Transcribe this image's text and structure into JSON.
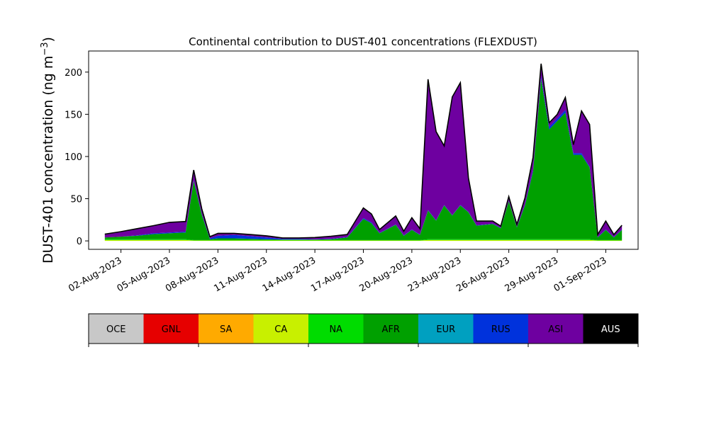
{
  "chart_data": {
    "type": "area",
    "stacked": true,
    "title": "Continental contribution to DUST-401 concentrations (FLEXDUST)",
    "ylabel_main": "DUST-401 concentration (ng m",
    "ylabel_sup": "−3",
    "ylabel_end": ")",
    "xlabel": "",
    "x_range": [
      "31-Jul-2023",
      "03-Sep-2023"
    ],
    "ylim": [
      -10,
      225
    ],
    "yticks": [
      0,
      50,
      100,
      150,
      200
    ],
    "xticks": [
      "02-Aug-2023",
      "05-Aug-2023",
      "08-Aug-2023",
      "11-Aug-2023",
      "14-Aug-2023",
      "17-Aug-2023",
      "20-Aug-2023",
      "23-Aug-2023",
      "26-Aug-2023",
      "29-Aug-2023",
      "01-Sep-2023"
    ],
    "grid": false,
    "x_dates": [
      "01-Aug-2023",
      "02-Aug-2023",
      "03-Aug-2023",
      "04-Aug-2023",
      "05-Aug-2023",
      "06-Aug-2023",
      "06-Aug-2023 12:00",
      "07-Aug-2023",
      "07-Aug-2023 12:00",
      "08-Aug-2023",
      "09-Aug-2023",
      "10-Aug-2023",
      "11-Aug-2023",
      "12-Aug-2023",
      "13-Aug-2023",
      "14-Aug-2023",
      "15-Aug-2023",
      "16-Aug-2023",
      "17-Aug-2023",
      "17-Aug-2023 12:00",
      "18-Aug-2023",
      "19-Aug-2023",
      "19-Aug-2023 12:00",
      "20-Aug-2023",
      "20-Aug-2023 12:00",
      "21-Aug-2023",
      "21-Aug-2023 12:00",
      "22-Aug-2023",
      "22-Aug-2023 12:00",
      "23-Aug-2023",
      "23-Aug-2023 12:00",
      "24-Aug-2023",
      "25-Aug-2023",
      "25-Aug-2023 12:00",
      "26-Aug-2023",
      "26-Aug-2023 12:00",
      "27-Aug-2023",
      "27-Aug-2023 12:00",
      "28-Aug-2023",
      "28-Aug-2023 12:00",
      "29-Aug-2023",
      "29-Aug-2023 12:00",
      "30-Aug-2023",
      "30-Aug-2023 12:00",
      "31-Aug-2023",
      "31-Aug-2023 12:00",
      "01-Sep-2023",
      "01-Sep-2023 12:00",
      "02-Sep-2023"
    ],
    "series": [
      {
        "name": "OCE",
        "color": "#c8c8c8",
        "values": [
          0,
          0,
          0,
          0,
          0,
          0,
          0,
          0,
          0,
          0,
          0,
          0,
          0,
          0,
          0,
          0,
          0,
          0,
          0,
          0,
          0,
          0,
          0,
          0,
          0,
          0,
          0,
          0,
          0,
          0,
          0,
          0,
          0,
          0,
          0,
          0,
          0,
          0,
          0,
          0,
          0,
          0,
          0,
          0,
          0,
          0,
          0,
          0,
          0
        ]
      },
      {
        "name": "GNL",
        "color": "#e60000",
        "values": [
          0,
          0,
          0,
          0,
          0,
          0,
          0,
          0,
          0,
          0,
          0,
          0,
          0,
          0,
          0,
          0,
          0,
          0,
          0,
          0,
          0,
          0,
          0,
          0,
          0,
          0,
          0,
          0,
          0,
          0,
          0,
          0,
          0,
          0,
          0,
          0,
          0,
          0,
          0,
          0,
          0,
          0,
          0,
          0,
          0,
          0,
          0,
          0,
          0
        ]
      },
      {
        "name": "SA",
        "color": "#ffaa00",
        "values": [
          0,
          0,
          0,
          0,
          0,
          0,
          0,
          0,
          0,
          0,
          0,
          0,
          0,
          0,
          0,
          0,
          0,
          0,
          0,
          0,
          0,
          0,
          0,
          0,
          0,
          0,
          0,
          0,
          0,
          0,
          0,
          0,
          0,
          0,
          0,
          0,
          0,
          0,
          0,
          0,
          0,
          0,
          0,
          0,
          0,
          0,
          0,
          0,
          0
        ]
      },
      {
        "name": "CA",
        "color": "#c8f000",
        "values": [
          1,
          1,
          1,
          1,
          1,
          1,
          0.5,
          0.5,
          0.5,
          0.5,
          0.5,
          0.5,
          0.5,
          0.5,
          0.5,
          0.5,
          0.5,
          0.5,
          0.5,
          0.5,
          0.5,
          0.5,
          0.5,
          0.5,
          0.5,
          1,
          1,
          1,
          1,
          1,
          1,
          1,
          1,
          1,
          1,
          1,
          1,
          1,
          1,
          1,
          1,
          1,
          1,
          1,
          1,
          0.5,
          0.5,
          0.5,
          0.5
        ]
      },
      {
        "name": "NA",
        "color": "#00dc00",
        "values": [
          1,
          1,
          1,
          1,
          1,
          1,
          0.5,
          0.5,
          0.5,
          0.5,
          0.5,
          0.5,
          0.5,
          0.5,
          0.5,
          0.5,
          0.5,
          0.5,
          0.5,
          0.5,
          0.5,
          0.5,
          0.5,
          0.5,
          0.5,
          1,
          1,
          1,
          1,
          1,
          1,
          1,
          1,
          1,
          1,
          1,
          1,
          1,
          1,
          1,
          1,
          1,
          1,
          1,
          1,
          0.5,
          0.5,
          0.5,
          0.5
        ]
      },
      {
        "name": "AFR",
        "color": "#00a000",
        "values": [
          2,
          3,
          4,
          6,
          7,
          8,
          70,
          30,
          1,
          2,
          2,
          1.5,
          1,
          0.5,
          0.5,
          0.5,
          1,
          3,
          25,
          20,
          8,
          18,
          5,
          12,
          6,
          34,
          22,
          40,
          28,
          40,
          32,
          16,
          18,
          13,
          45,
          14,
          40,
          80,
          190,
          130,
          140,
          150,
          100,
          100,
          85,
          3,
          12,
          3,
          12
        ]
      },
      {
        "name": "EUR",
        "color": "#00a0c0",
        "values": [
          0,
          0,
          0,
          0,
          0,
          0,
          0,
          0,
          0,
          0,
          0,
          0,
          0,
          0,
          0,
          0,
          0,
          0,
          0,
          0,
          0,
          0,
          0,
          0,
          0,
          0,
          0,
          0,
          0,
          0,
          0,
          0,
          0,
          0,
          0,
          0,
          0,
          0,
          0,
          0,
          0,
          0,
          0,
          0,
          0,
          0,
          0,
          0,
          0
        ]
      },
      {
        "name": "RUS",
        "color": "#0032dc",
        "values": [
          0,
          0,
          0.5,
          1,
          1,
          1,
          1,
          1,
          1,
          3,
          4,
          3,
          2,
          1,
          1,
          0.5,
          0.5,
          0.5,
          1,
          1,
          0.5,
          0.5,
          0.5,
          0.5,
          0.5,
          0.5,
          0.5,
          0.5,
          0.5,
          0.5,
          0.5,
          0.5,
          0.5,
          0.5,
          0.5,
          0.5,
          1,
          2,
          3,
          3,
          3,
          3,
          2,
          2,
          1,
          0.5,
          0.5,
          0.5,
          0.5
        ]
      },
      {
        "name": "ASI",
        "color": "#6e00a0",
        "values": [
          4,
          6,
          8,
          9,
          12,
          12,
          12,
          6,
          2,
          3,
          2,
          2,
          2,
          1,
          1,
          2,
          3,
          3,
          12,
          10,
          4,
          10,
          5,
          14,
          7,
          155,
          105,
          70,
          140,
          145,
          40,
          5,
          3,
          2,
          5,
          3,
          8,
          15,
          15,
          5,
          5,
          15,
          10,
          50,
          50,
          3,
          10,
          3,
          5
        ]
      },
      {
        "name": "AUS",
        "color": "#000000",
        "values": [
          0,
          0,
          0,
          0,
          0,
          0,
          0,
          0,
          0,
          0,
          0,
          0,
          0,
          0,
          0,
          0,
          0,
          0,
          0,
          0,
          0,
          0,
          0,
          0,
          0,
          0,
          0,
          0,
          0,
          0,
          0,
          0,
          0,
          0,
          0,
          0,
          0,
          0,
          0,
          0,
          0,
          0,
          0,
          0,
          0,
          0,
          0,
          0,
          0
        ]
      }
    ],
    "legend_position": "below"
  }
}
